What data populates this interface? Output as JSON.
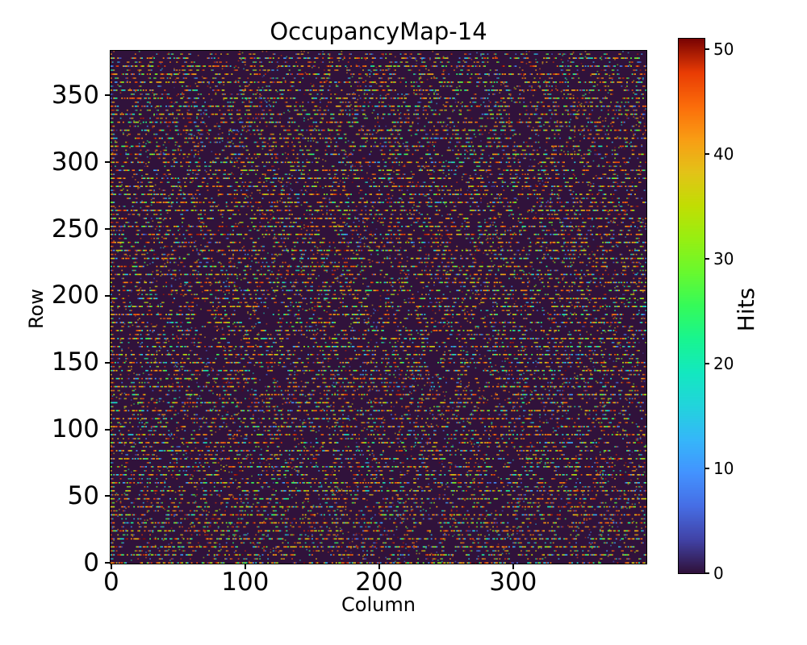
{
  "chart_data": {
    "type": "heatmap",
    "title": "OccupancyMap-14",
    "xlabel": "Column",
    "ylabel": "Row",
    "n_cols": 400,
    "n_rows": 384,
    "x_range": [
      0,
      399
    ],
    "y_range": [
      0,
      383
    ],
    "x_ticks": [
      0,
      100,
      200,
      300
    ],
    "y_ticks": [
      0,
      50,
      100,
      150,
      200,
      250,
      300,
      350
    ],
    "grid": false,
    "legend": null,
    "colorbar": {
      "label": "Hits",
      "ticks": [
        0,
        10,
        20,
        30,
        40,
        50
      ],
      "vmin": 0,
      "vmax": 51,
      "position": "right"
    },
    "colormap": {
      "name": "turbo",
      "stops": [
        "#30123b",
        "#4143a7",
        "#466ee5",
        "#4393ff",
        "#35b7f9",
        "#22d4dc",
        "#13e8c0",
        "#18f590",
        "#35fa5a",
        "#68f92f",
        "#97ef12",
        "#c1de03",
        "#e3c318",
        "#f99d14",
        "#fb6c0a",
        "#e93c04",
        "#7a0403"
      ]
    },
    "zero_value_color": "#30123b",
    "pattern": {
      "description": "Random hit-occupancy noise on dark background: every 3rd pixel row is populated with short multicolored hit runs (alternating dense and sparse rows); high hit counts (red/orange) dominate, with blue/cyan/green lows mixed in; stray faint speckles elsewhere.",
      "seed": 14,
      "active_row_period": 3,
      "high_value_bias": 0.52,
      "stray_speckle_prob": 0.02
    }
  }
}
